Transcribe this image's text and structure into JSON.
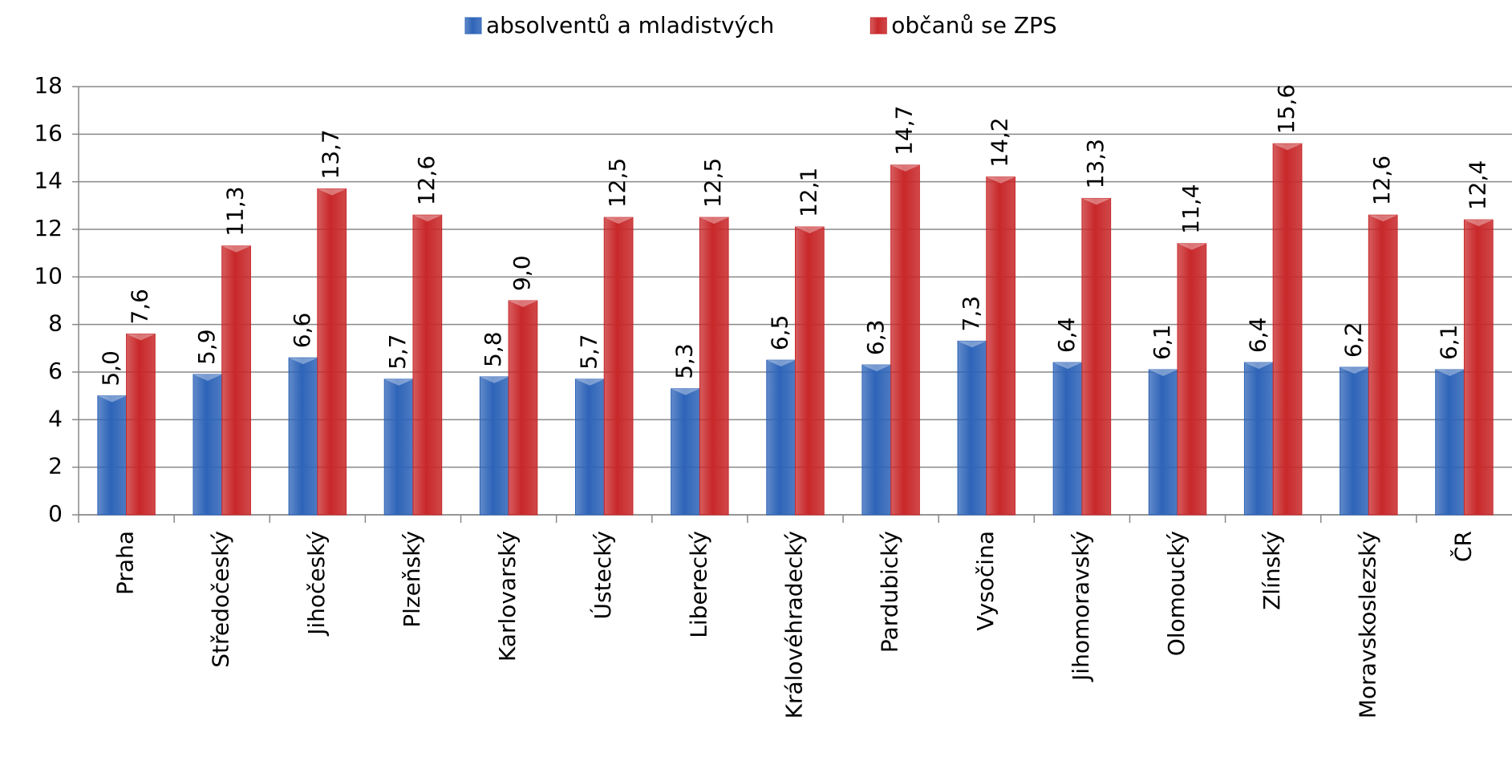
{
  "chart_data": {
    "type": "bar",
    "categories": [
      "Praha",
      "Středočeský",
      "Jihočeský",
      "Plzeňský",
      "Karlovarský",
      "Ústecký",
      "Liberecký",
      "Královéhradecký",
      "Pardubický",
      "Vysočina",
      "Jihomoravský",
      "Olomoucký",
      "Zlínský",
      "Moravskoslezský",
      "ČR"
    ],
    "series": [
      {
        "name": "absolventů a mladistvých",
        "color": "#2e64b8",
        "values": [
          5.0,
          5.9,
          6.6,
          5.7,
          5.8,
          5.7,
          5.3,
          6.5,
          6.3,
          7.3,
          6.4,
          6.1,
          6.4,
          6.2,
          6.1
        ],
        "value_labels": [
          "5,0",
          "5,9",
          "6,6",
          "5,7",
          "5,8",
          "5,7",
          "5,3",
          "6,5",
          "6,3",
          "7,3",
          "6,4",
          "6,1",
          "6,4",
          "6,2",
          "6,1"
        ]
      },
      {
        "name": "občanů se ZPS",
        "color": "#c8282a",
        "values": [
          7.6,
          11.3,
          13.7,
          12.6,
          9.0,
          12.5,
          12.5,
          12.1,
          14.7,
          14.2,
          13.3,
          11.4,
          15.6,
          12.6,
          12.4
        ],
        "value_labels": [
          "7,6",
          "11,3",
          "13,7",
          "12,6",
          "9,0",
          "12,5",
          "12,5",
          "12,1",
          "14,7",
          "14,2",
          "13,3",
          "11,4",
          "15,6",
          "12,6",
          "12,4"
        ]
      }
    ],
    "ylim": [
      0,
      18
    ],
    "yticks": [
      0,
      2,
      4,
      6,
      8,
      10,
      12,
      14,
      16,
      18
    ],
    "grid": true,
    "legend": "top"
  }
}
